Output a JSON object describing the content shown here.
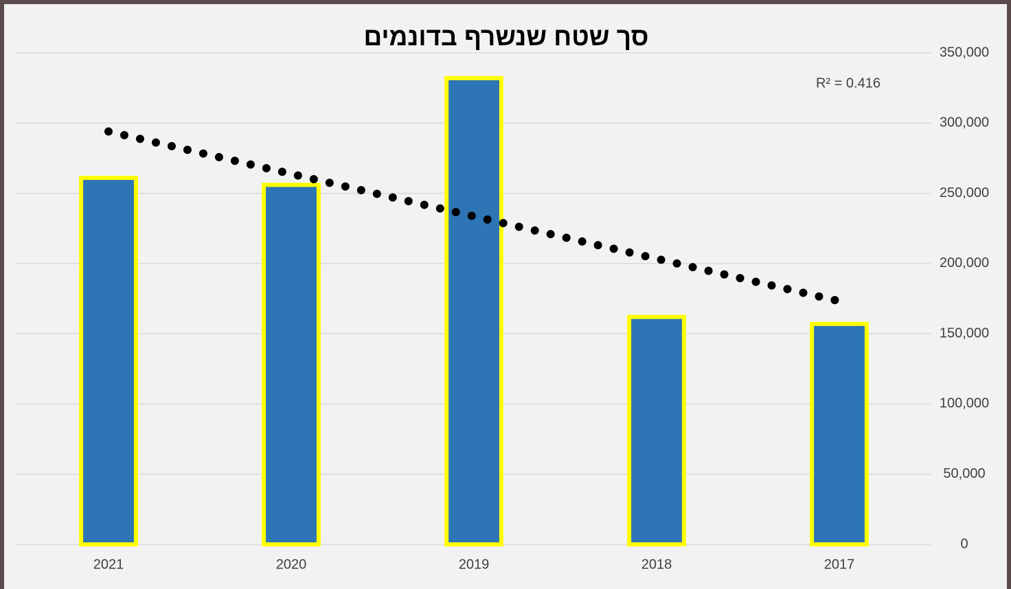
{
  "chart_data": {
    "type": "bar",
    "title": "סך שטח שנשרף בדונמים",
    "categories": [
      "2021",
      "2020",
      "2019",
      "2018",
      "2017"
    ],
    "values": [
      261000,
      256000,
      332000,
      162000,
      157000
    ],
    "color": "#2e75b6",
    "edge_color": "#ffff00",
    "trendline": "linear",
    "trendline_color": "#000000",
    "annotation": "R² = 0.416",
    "ylim": [
      0,
      350000
    ],
    "yticks": [
      0,
      {
        "value": 50000,
        "label": "50,000"
      },
      {
        "value": 100000,
        "label": "100,000"
      },
      {
        "value": 150000,
        "label": "150,000"
      },
      {
        "value": 200000,
        "label": "200,000"
      },
      {
        "value": 250000,
        "label": "250,000"
      },
      {
        "value": 300000,
        "label": "300,000"
      },
      {
        "value": 350000,
        "label": "350,000"
      }
    ],
    "y_axis_side": "right",
    "grid": true
  }
}
